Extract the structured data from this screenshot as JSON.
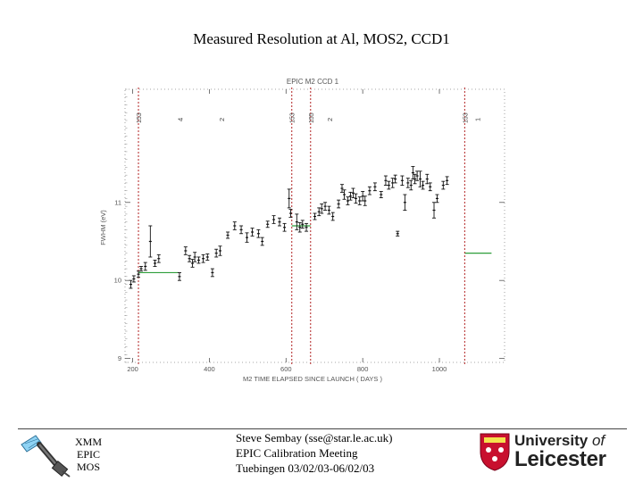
{
  "slide_title": "Measured Resolution at Al, MOS2, CCD1",
  "mission": {
    "line1": "XMM",
    "line2": "EPIC",
    "line3": "MOS"
  },
  "footer": {
    "author": "Steve Sembay (sse@star.le.ac.uk)",
    "meeting": "EPIC Calibration Meeting",
    "venue": "Tuebingen 03/02/03-06/02/03"
  },
  "logo": {
    "line1_a": "University ",
    "line1_b": "of",
    "line2": "Leicester"
  },
  "chart_data": {
    "type": "scatter",
    "title": "EPIC M2    CCD 1",
    "xlabel": "M2 TIME ELAPSED SINCE LAUNCH ( DAYS )",
    "ylabel": "FWHM (eV)",
    "xlim": [
      180,
      1170
    ],
    "ylim": [
      8.95,
      12.45
    ],
    "xticks": [
      200,
      400,
      600,
      800,
      1000
    ],
    "yticks": [
      9,
      10,
      11
    ],
    "vlines": [
      {
        "x": 215,
        "label": "153"
      },
      {
        "x": 615,
        "label": "153"
      },
      {
        "x": 664,
        "label": "155"
      },
      {
        "x": 1066,
        "label": "153"
      }
    ],
    "annotations": [
      {
        "x": 330,
        "text": "4"
      },
      {
        "x": 438,
        "text": "2"
      },
      {
        "x": 720,
        "text": "2"
      },
      {
        "x": 1106,
        "text": "1"
      }
    ],
    "reference_levels": [
      {
        "x": [
          215,
          320
        ],
        "y": 10.1
      },
      {
        "x": [
          615,
          664
        ],
        "y": 10.7
      },
      {
        "x": [
          1066,
          1136
        ],
        "y": 10.35
      }
    ],
    "points": [
      [
        195,
        9.95,
        0.05
      ],
      [
        203,
        10.02,
        0.04
      ],
      [
        215,
        10.08,
        0.04
      ],
      [
        222,
        10.15,
        0.03
      ],
      [
        233,
        10.18,
        0.05
      ],
      [
        246,
        10.5,
        0.2
      ],
      [
        258,
        10.22,
        0.04
      ],
      [
        268,
        10.28,
        0.05
      ],
      [
        322,
        10.05,
        0.05
      ],
      [
        338,
        10.38,
        0.05
      ],
      [
        348,
        10.28,
        0.04
      ],
      [
        356,
        10.22,
        0.05
      ],
      [
        362,
        10.3,
        0.06
      ],
      [
        372,
        10.26,
        0.04
      ],
      [
        384,
        10.28,
        0.05
      ],
      [
        395,
        10.3,
        0.04
      ],
      [
        408,
        10.1,
        0.05
      ],
      [
        418,
        10.35,
        0.05
      ],
      [
        428,
        10.38,
        0.06
      ],
      [
        448,
        10.58,
        0.04
      ],
      [
        466,
        10.7,
        0.05
      ],
      [
        483,
        10.65,
        0.05
      ],
      [
        498,
        10.55,
        0.06
      ],
      [
        512,
        10.62,
        0.05
      ],
      [
        528,
        10.6,
        0.05
      ],
      [
        538,
        10.5,
        0.05
      ],
      [
        552,
        10.72,
        0.04
      ],
      [
        568,
        10.78,
        0.05
      ],
      [
        583,
        10.75,
        0.05
      ],
      [
        596,
        10.68,
        0.05
      ],
      [
        608,
        11.05,
        0.12
      ],
      [
        612,
        10.86,
        0.05
      ],
      [
        628,
        10.75,
        0.1
      ],
      [
        636,
        10.68,
        0.06
      ],
      [
        643,
        10.72,
        0.05
      ],
      [
        653,
        10.68,
        0.05
      ],
      [
        675,
        10.82,
        0.04
      ],
      [
        686,
        10.88,
        0.05
      ],
      [
        693,
        10.92,
        0.06
      ],
      [
        702,
        10.95,
        0.05
      ],
      [
        712,
        10.9,
        0.05
      ],
      [
        722,
        10.82,
        0.05
      ],
      [
        737,
        10.98,
        0.05
      ],
      [
        746,
        11.18,
        0.05
      ],
      [
        752,
        11.1,
        0.06
      ],
      [
        761,
        11.02,
        0.05
      ],
      [
        768,
        11.08,
        0.05
      ],
      [
        775,
        11.12,
        0.06
      ],
      [
        782,
        11.05,
        0.06
      ],
      [
        792,
        11.02,
        0.05
      ],
      [
        800,
        11.08,
        0.06
      ],
      [
        806,
        11.02,
        0.06
      ],
      [
        818,
        11.15,
        0.05
      ],
      [
        832,
        11.2,
        0.05
      ],
      [
        848,
        11.1,
        0.04
      ],
      [
        860,
        11.28,
        0.06
      ],
      [
        868,
        11.22,
        0.05
      ],
      [
        878,
        11.25,
        0.06
      ],
      [
        885,
        11.3,
        0.05
      ],
      [
        891,
        10.6,
        0.03
      ],
      [
        903,
        11.28,
        0.06
      ],
      [
        910,
        11.0,
        0.1
      ],
      [
        918,
        11.25,
        0.06
      ],
      [
        926,
        11.22,
        0.06
      ],
      [
        931,
        11.38,
        0.08
      ],
      [
        936,
        11.3,
        0.06
      ],
      [
        942,
        11.34,
        0.06
      ],
      [
        950,
        11.3,
        0.1
      ],
      [
        957,
        11.22,
        0.05
      ],
      [
        968,
        11.3,
        0.06
      ],
      [
        976,
        11.2,
        0.05
      ],
      [
        986,
        10.9,
        0.1
      ],
      [
        994,
        11.05,
        0.05
      ],
      [
        1010,
        11.22,
        0.05
      ],
      [
        1020,
        11.28,
        0.05
      ]
    ]
  }
}
